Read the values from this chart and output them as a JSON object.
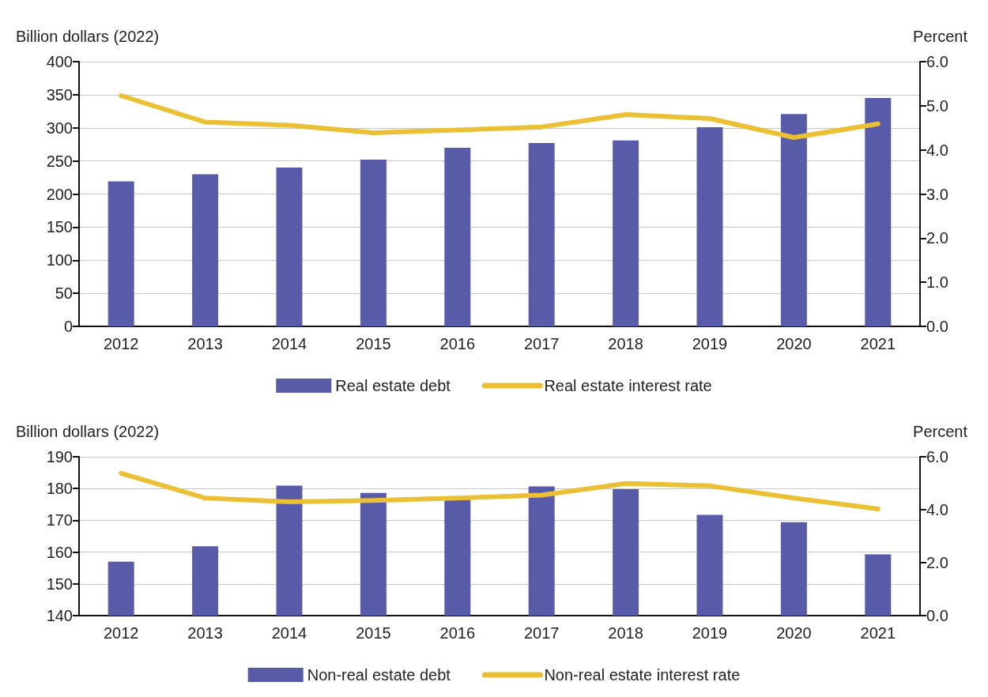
{
  "chart_data": [
    {
      "type": "bar",
      "ylabel": "Billion dollars (2022)",
      "y2label": "Percent",
      "categories": [
        "2012",
        "2013",
        "2014",
        "2015",
        "2016",
        "2017",
        "2018",
        "2019",
        "2020",
        "2021"
      ],
      "series": [
        {
          "name": "Real estate debt",
          "color": "#585ca8",
          "values": [
            219,
            230,
            240,
            252,
            270,
            277,
            281,
            301,
            321,
            345
          ]
        },
        {
          "name": "Real estate interest rate",
          "type": "line",
          "axis": "y2",
          "color": "#ebc034",
          "values": [
            5.23,
            4.63,
            4.56,
            4.39,
            4.45,
            4.52,
            4.8,
            4.71,
            4.28,
            4.59
          ]
        }
      ],
      "ylim": [
        0,
        400
      ],
      "yticks": [
        0,
        50,
        100,
        150,
        200,
        250,
        300,
        350,
        400
      ],
      "y2lim": [
        0,
        6
      ],
      "y2ticks": [
        {
          "value": 0,
          "label": "0.0"
        },
        {
          "value": 1,
          "label": "1.0"
        },
        {
          "value": 2,
          "label": "2.0"
        },
        {
          "value": 3,
          "label": "3.0"
        },
        {
          "value": 4,
          "label": "4.0"
        },
        {
          "value": 5,
          "label": "5.0"
        },
        {
          "value": 6,
          "label": "6.0"
        }
      ],
      "grid": "y",
      "legend": "bottom",
      "marker": "none",
      "line_style": "solid"
    },
    {
      "type": "bar",
      "ylabel": "Billion dollars (2022)",
      "y2label": "Percent",
      "categories": [
        "2012",
        "2013",
        "2014",
        "2015",
        "2016",
        "2017",
        "2018",
        "2019",
        "2020",
        "2021"
      ],
      "series": [
        {
          "name": "Non-real estate debt",
          "color": "#585ca8",
          "values": [
            157,
            161.8,
            180.9,
            178.6,
            177,
            180.7,
            179.8,
            171.7,
            169.4,
            159.3
          ]
        },
        {
          "name": "Non-real estate interest rate",
          "type": "line",
          "axis": "y2",
          "color": "#ebc034",
          "values": [
            5.38,
            4.44,
            4.3,
            4.35,
            4.44,
            4.55,
            4.99,
            4.9,
            4.44,
            4.03
          ]
        }
      ],
      "ylim": [
        140,
        190
      ],
      "yticks": [
        140,
        150,
        160,
        170,
        180,
        190
      ],
      "y2lim": [
        0,
        6
      ],
      "y2ticks": [
        {
          "value": 0,
          "label": "0.0"
        },
        {
          "value": 2,
          "label": "2.0"
        },
        {
          "value": 4,
          "label": "4.0"
        },
        {
          "value": 6,
          "label": "6.0"
        }
      ],
      "grid": "y",
      "legend": "bottom",
      "marker": "none",
      "line_style": "solid"
    }
  ]
}
